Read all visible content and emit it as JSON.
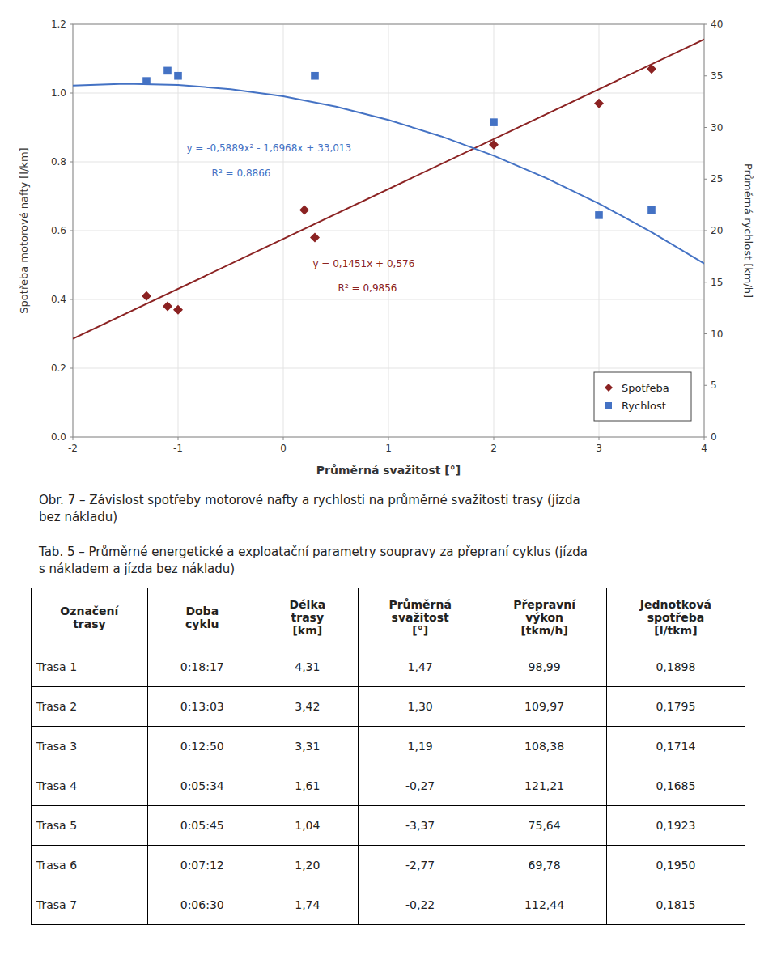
{
  "chart_data": {
    "type": "scatter",
    "xlabel": "Průměrná svažitost [°]",
    "ylabel": "Spotřeba motorové nafty [l/km]",
    "y2label": "Průměrná rychlost [km/h]",
    "xlim": [
      -2,
      4
    ],
    "xticks": [
      -2,
      -1,
      0,
      1,
      2,
      3,
      4
    ],
    "ylim": [
      0,
      1.2
    ],
    "yticks": [
      {
        "value": 0,
        "label": "0.0"
      },
      0.2,
      0.4,
      0.6,
      0.8,
      {
        "value": 1.0,
        "label": "1.0"
      },
      1.2
    ],
    "y2lim": [
      0,
      40
    ],
    "y2ticks": [
      0,
      5,
      10,
      15,
      20,
      25,
      30,
      35,
      40
    ],
    "grid": true,
    "legend": "lower right",
    "series": [
      {
        "name": "Spotřeba",
        "color": "#8B2222",
        "marker": "diamond",
        "x": [
          -1.3,
          -1.1,
          -1.0,
          0.2,
          0.3,
          2.0,
          3.0,
          3.5
        ],
        "values": [
          0.41,
          0.38,
          0.37,
          0.66,
          0.58,
          0.85,
          0.97,
          1.07
        ],
        "trend": {
          "x": [
            -2,
            4
          ],
          "values": [
            0.2858,
            1.1564
          ],
          "equation": "y = 0,1451x + 0,576",
          "r2": "R² = 0,9856"
        }
      },
      {
        "name": "Rychlost",
        "color": "#4472C4",
        "marker": "square",
        "axis": "y2",
        "x": [
          -1.3,
          -1.1,
          -1.0,
          0.3,
          2.0,
          3.0,
          3.5
        ],
        "values": [
          34.5,
          35.5,
          35.0,
          35.0,
          30.5,
          21.5,
          22.0
        ],
        "trend": {
          "x": [
            -2,
            -1.5,
            -1,
            -0.5,
            0,
            0.5,
            1,
            1.5,
            2,
            2.5,
            3,
            3.5,
            4
          ],
          "values": [
            34.051,
            34.233175,
            34.1209,
            33.714175,
            33.013,
            32.017375,
            30.7273,
            29.142775,
            27.2638,
            25.090375,
            22.6225,
            19.860175,
            16.8034
          ],
          "equation": "y = -0,5889x² - 1,6968x + 33,013",
          "r2": "R² = 0,8866"
        }
      }
    ]
  },
  "caption": [
    "Obr. 7 – Závislost spotřeby motorové nafty a rychlosti na průměrné svažitosti trasy (jízda",
    "bez nákladu)"
  ],
  "table": {
    "title": [
      "Tab. 5 – Průměrné energetické a exploatační parametry soupravy za přepraní cyklus (jízda",
      "s nákladem a jízda bez nákladu)"
    ],
    "headers": [
      "Označení\ntrasy",
      "Doba\ncyklu",
      "Délka\ntrasy\n[km]",
      "Průměrná\nsvažitost\n[°]",
      "Přepravní\nvýkon\n[tkm/h]",
      "Jednotková\nspotřeba\n[l/tkm]"
    ],
    "rows": [
      [
        "Trasa 1",
        "0:18:17",
        "4,31",
        "1,47",
        "98,99",
        "0,1898"
      ],
      [
        "Trasa 2",
        "0:13:03",
        "3,42",
        "1,30",
        "109,97",
        "0,1795"
      ],
      [
        "Trasa 3",
        "0:12:50",
        "3,31",
        "1,19",
        "108,38",
        "0,1714"
      ],
      [
        "Trasa 4",
        "0:05:34",
        "1,61",
        "-0,27",
        "121,21",
        "0,1685"
      ],
      [
        "Trasa 5",
        "0:05:45",
        "1,04",
        "-3,37",
        "75,64",
        "0,1923"
      ],
      [
        "Trasa 6",
        "0:07:12",
        "1,20",
        "-2,77",
        "69,78",
        "0,1950"
      ],
      [
        "Trasa 7",
        "0:06:30",
        "1,74",
        "-0,22",
        "112,44",
        "0,1815"
      ]
    ]
  }
}
